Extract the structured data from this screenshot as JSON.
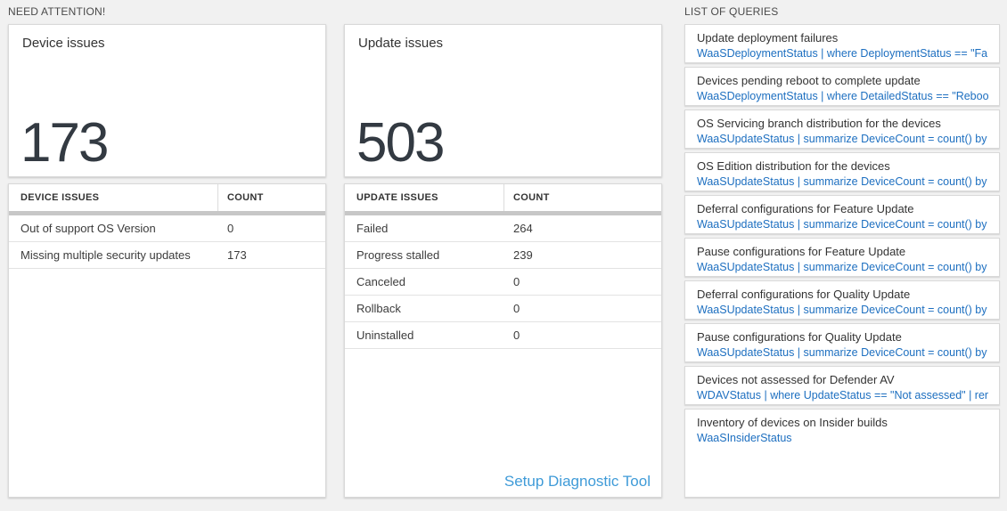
{
  "colors": {
    "page_background": "#f1f1f1",
    "card_border": "#d9d9d9",
    "big_number": "#333a42",
    "query_blue": "#1d6fc0",
    "diag_link_blue": "#3f9bd8",
    "scroll_bar_gray": "#c7c7c7"
  },
  "need_attention": {
    "title": "NEED ATTENTION!",
    "device_card": {
      "title": "Device issues",
      "value": "173",
      "table": {
        "headers": [
          "DEVICE ISSUES",
          "COUNT"
        ],
        "rows": [
          {
            "label": "Out of support OS Version",
            "count": "0"
          },
          {
            "label": "Missing multiple security updates",
            "count": "173"
          }
        ]
      }
    },
    "update_card": {
      "title": "Update issues",
      "value": "503",
      "table": {
        "headers": [
          "UPDATE ISSUES",
          "COUNT"
        ],
        "rows": [
          {
            "label": "Failed",
            "count": "264"
          },
          {
            "label": "Progress stalled",
            "count": "239"
          },
          {
            "label": "Canceled",
            "count": "0"
          },
          {
            "label": "Rollback",
            "count": "0"
          },
          {
            "label": "Uninstalled",
            "count": "0"
          }
        ]
      },
      "footer_link": "Setup Diagnostic Tool"
    }
  },
  "queries": {
    "title": "LIST OF QUERIES",
    "items": [
      {
        "name": "Update deployment failures",
        "query": "WaaSDeploymentStatus | where DeploymentStatus == \"Failed\" |..."
      },
      {
        "name": "Devices pending reboot to complete update",
        "query": "WaaSDeploymentStatus | where DetailedStatus == \"Reboot pend..."
      },
      {
        "name": "OS Servicing branch distribution for the devices",
        "query": "WaaSUpdateStatus | summarize DeviceCount = count() by OSSer..."
      },
      {
        "name": "OS Edition distribution for the devices",
        "query": "WaaSUpdateStatus | summarize DeviceCount = count() by OSEdit..."
      },
      {
        "name": "Deferral configurations for Feature Update",
        "query": "WaaSUpdateStatus | summarize DeviceCount = count() by Featur..."
      },
      {
        "name": "Pause configurations for Feature Update",
        "query": "WaaSUpdateStatus | summarize DeviceCount = count() by Featur..."
      },
      {
        "name": "Deferral configurations for Quality Update",
        "query": "WaaSUpdateStatus | summarize DeviceCount = count() by Qualit..."
      },
      {
        "name": "Pause configurations for Quality Update",
        "query": "WaaSUpdateStatus | summarize DeviceCount = count() by Qualit..."
      },
      {
        "name": "Devices not assessed for Defender AV",
        "query": "WDAVStatus | where UpdateStatus == \"Not assessed\" | render ta..."
      },
      {
        "name": "Inventory of devices on Insider builds",
        "query": "WaaSInsiderStatus"
      }
    ]
  }
}
